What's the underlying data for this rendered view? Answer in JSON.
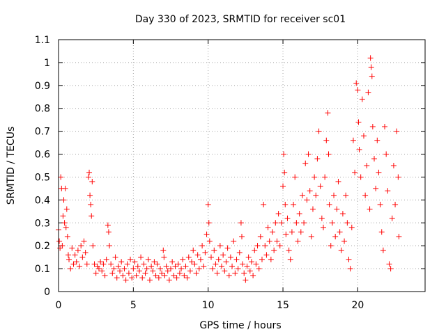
{
  "chart_data": {
    "type": "scatter",
    "title": "Day 330 of 2023, SRMTID for receiver sc01",
    "xlabel": "GPS time / hours",
    "ylabel": "SRMTID / TECUs",
    "xlim": [
      0,
      24.5
    ],
    "ylim": [
      0,
      1.1
    ],
    "xticks": [
      0,
      5,
      10,
      15,
      20
    ],
    "xtick_labels": [
      "0",
      "5",
      "10",
      "15",
      "20"
    ],
    "yticks": [
      0,
      0.1,
      0.2,
      0.3,
      0.4,
      0.5,
      0.6,
      0.7,
      0.8,
      0.9,
      1,
      1.1
    ],
    "ytick_labels": [
      "0",
      "0.1",
      "0.2",
      "0.3",
      "0.4",
      "0.5",
      "0.6",
      "0.7",
      "0.8",
      "0.9",
      "1",
      "1.1"
    ],
    "grid": true,
    "marker": "+",
    "color": "#ff0000",
    "series": [
      {
        "name": "SRMTID",
        "points": [
          [
            0.0,
            0.27
          ],
          [
            0.05,
            0.22
          ],
          [
            0.1,
            0.19
          ],
          [
            0.15,
            0.5
          ],
          [
            0.2,
            0.45
          ],
          [
            0.25,
            0.2
          ],
          [
            0.3,
            0.33
          ],
          [
            0.35,
            0.4
          ],
          [
            0.4,
            0.3
          ],
          [
            0.45,
            0.45
          ],
          [
            0.5,
            0.28
          ],
          [
            0.55,
            0.36
          ],
          [
            0.6,
            0.24
          ],
          [
            0.65,
            0.16
          ],
          [
            0.7,
            0.14
          ],
          [
            0.8,
            0.1
          ],
          [
            0.9,
            0.19
          ],
          [
            1.0,
            0.12
          ],
          [
            1.1,
            0.16
          ],
          [
            1.2,
            0.13
          ],
          [
            1.3,
            0.18
          ],
          [
            1.4,
            0.11
          ],
          [
            1.5,
            0.2
          ],
          [
            1.6,
            0.15
          ],
          [
            1.7,
            0.22
          ],
          [
            1.8,
            0.17
          ],
          [
            1.9,
            0.12
          ],
          [
            2.0,
            0.5
          ],
          [
            2.05,
            0.52
          ],
          [
            2.1,
            0.42
          ],
          [
            2.15,
            0.38
          ],
          [
            2.2,
            0.33
          ],
          [
            2.25,
            0.48
          ],
          [
            2.3,
            0.2
          ],
          [
            2.4,
            0.12
          ],
          [
            2.5,
            0.08
          ],
          [
            2.6,
            0.11
          ],
          [
            2.7,
            0.1
          ],
          [
            2.8,
            0.13
          ],
          [
            2.9,
            0.09
          ],
          [
            3.0,
            0.12
          ],
          [
            3.1,
            0.07
          ],
          [
            3.2,
            0.14
          ],
          [
            3.3,
            0.29
          ],
          [
            3.35,
            0.26
          ],
          [
            3.4,
            0.2
          ],
          [
            3.5,
            0.12
          ],
          [
            3.6,
            0.08
          ],
          [
            3.7,
            0.1
          ],
          [
            3.8,
            0.15
          ],
          [
            3.9,
            0.06
          ],
          [
            4.0,
            0.11
          ],
          [
            4.1,
            0.09
          ],
          [
            4.2,
            0.13
          ],
          [
            4.3,
            0.07
          ],
          [
            4.4,
            0.1
          ],
          [
            4.5,
            0.05
          ],
          [
            4.6,
            0.12
          ],
          [
            4.7,
            0.08
          ],
          [
            4.8,
            0.14
          ],
          [
            4.9,
            0.06
          ],
          [
            5.0,
            0.1
          ],
          [
            5.1,
            0.13
          ],
          [
            5.2,
            0.07
          ],
          [
            5.3,
            0.11
          ],
          [
            5.4,
            0.09
          ],
          [
            5.5,
            0.15
          ],
          [
            5.6,
            0.06
          ],
          [
            5.7,
            0.12
          ],
          [
            5.8,
            0.08
          ],
          [
            5.9,
            0.1
          ],
          [
            6.0,
            0.14
          ],
          [
            6.1,
            0.05
          ],
          [
            6.2,
            0.11
          ],
          [
            6.3,
            0.09
          ],
          [
            6.4,
            0.13
          ],
          [
            6.5,
            0.07
          ],
          [
            6.6,
            0.12
          ],
          [
            6.7,
            0.06
          ],
          [
            6.8,
            0.1
          ],
          [
            6.9,
            0.08
          ],
          [
            7.0,
            0.18
          ],
          [
            7.05,
            0.15
          ],
          [
            7.1,
            0.07
          ],
          [
            7.2,
            0.11
          ],
          [
            7.3,
            0.09
          ],
          [
            7.4,
            0.05
          ],
          [
            7.5,
            0.1
          ],
          [
            7.6,
            0.13
          ],
          [
            7.7,
            0.07
          ],
          [
            7.8,
            0.11
          ],
          [
            7.9,
            0.06
          ],
          [
            8.0,
            0.12
          ],
          [
            8.1,
            0.08
          ],
          [
            8.2,
            0.1
          ],
          [
            8.3,
            0.14
          ],
          [
            8.4,
            0.07
          ],
          [
            8.5,
            0.11
          ],
          [
            8.6,
            0.06
          ],
          [
            8.7,
            0.15
          ],
          [
            8.8,
            0.09
          ],
          [
            8.9,
            0.13
          ],
          [
            9.0,
            0.18
          ],
          [
            9.1,
            0.12
          ],
          [
            9.2,
            0.08
          ],
          [
            9.3,
            0.16
          ],
          [
            9.4,
            0.1
          ],
          [
            9.5,
            0.14
          ],
          [
            9.6,
            0.2
          ],
          [
            9.7,
            0.11
          ],
          [
            9.8,
            0.17
          ],
          [
            9.9,
            0.25
          ],
          [
            10.0,
            0.38
          ],
          [
            10.05,
            0.3
          ],
          [
            10.1,
            0.22
          ],
          [
            10.2,
            0.15
          ],
          [
            10.3,
            0.1
          ],
          [
            10.4,
            0.18
          ],
          [
            10.5,
            0.12
          ],
          [
            10.6,
            0.08
          ],
          [
            10.7,
            0.14
          ],
          [
            10.8,
            0.2
          ],
          [
            10.9,
            0.11
          ],
          [
            11.0,
            0.16
          ],
          [
            11.1,
            0.09
          ],
          [
            11.2,
            0.13
          ],
          [
            11.3,
            0.19
          ],
          [
            11.4,
            0.07
          ],
          [
            11.5,
            0.15
          ],
          [
            11.6,
            0.11
          ],
          [
            11.7,
            0.22
          ],
          [
            11.8,
            0.08
          ],
          [
            11.9,
            0.14
          ],
          [
            12.0,
            0.1
          ],
          [
            12.1,
            0.17
          ],
          [
            12.2,
            0.3
          ],
          [
            12.25,
            0.24
          ],
          [
            12.3,
            0.12
          ],
          [
            12.4,
            0.08
          ],
          [
            12.5,
            0.05
          ],
          [
            12.6,
            0.11
          ],
          [
            12.7,
            0.15
          ],
          [
            12.8,
            0.09
          ],
          [
            12.9,
            0.13
          ],
          [
            13.0,
            0.07
          ],
          [
            13.1,
            0.18
          ],
          [
            13.2,
            0.12
          ],
          [
            13.3,
            0.2
          ],
          [
            13.4,
            0.1
          ],
          [
            13.5,
            0.24
          ],
          [
            13.6,
            0.14
          ],
          [
            13.7,
            0.38
          ],
          [
            13.8,
            0.2
          ],
          [
            13.9,
            0.16
          ],
          [
            14.0,
            0.28
          ],
          [
            14.1,
            0.22
          ],
          [
            14.2,
            0.14
          ],
          [
            14.3,
            0.26
          ],
          [
            14.4,
            0.18
          ],
          [
            14.5,
            0.3
          ],
          [
            14.6,
            0.22
          ],
          [
            14.7,
            0.34
          ],
          [
            14.8,
            0.2
          ],
          [
            14.9,
            0.3
          ],
          [
            15.0,
            0.46
          ],
          [
            15.05,
            0.6
          ],
          [
            15.1,
            0.52
          ],
          [
            15.15,
            0.38
          ],
          [
            15.2,
            0.25
          ],
          [
            15.3,
            0.32
          ],
          [
            15.4,
            0.18
          ],
          [
            15.5,
            0.14
          ],
          [
            15.6,
            0.26
          ],
          [
            15.7,
            0.38
          ],
          [
            15.8,
            0.5
          ],
          [
            15.9,
            0.3
          ],
          [
            16.0,
            0.22
          ],
          [
            16.1,
            0.34
          ],
          [
            16.2,
            0.26
          ],
          [
            16.3,
            0.42
          ],
          [
            16.4,
            0.3
          ],
          [
            16.5,
            0.56
          ],
          [
            16.6,
            0.4
          ],
          [
            16.7,
            0.6
          ],
          [
            16.8,
            0.44
          ],
          [
            16.9,
            0.24
          ],
          [
            17.0,
            0.36
          ],
          [
            17.1,
            0.5
          ],
          [
            17.2,
            0.42
          ],
          [
            17.3,
            0.58
          ],
          [
            17.4,
            0.7
          ],
          [
            17.5,
            0.46
          ],
          [
            17.6,
            0.32
          ],
          [
            17.7,
            0.28
          ],
          [
            17.8,
            0.5
          ],
          [
            17.9,
            0.66
          ],
          [
            18.0,
            0.78
          ],
          [
            18.05,
            0.6
          ],
          [
            18.1,
            0.38
          ],
          [
            18.2,
            0.2
          ],
          [
            18.3,
            0.3
          ],
          [
            18.4,
            0.42
          ],
          [
            18.5,
            0.24
          ],
          [
            18.6,
            0.36
          ],
          [
            18.7,
            0.48
          ],
          [
            18.8,
            0.26
          ],
          [
            18.9,
            0.18
          ],
          [
            19.0,
            0.34
          ],
          [
            19.1,
            0.22
          ],
          [
            19.2,
            0.42
          ],
          [
            19.3,
            0.3
          ],
          [
            19.4,
            0.14
          ],
          [
            19.5,
            0.1
          ],
          [
            19.6,
            0.28
          ],
          [
            19.7,
            0.66
          ],
          [
            19.8,
            0.52
          ],
          [
            19.9,
            0.91
          ],
          [
            20.0,
            0.88
          ],
          [
            20.05,
            0.74
          ],
          [
            20.1,
            0.62
          ],
          [
            20.2,
            0.5
          ],
          [
            20.3,
            0.84
          ],
          [
            20.4,
            0.68
          ],
          [
            20.5,
            0.42
          ],
          [
            20.6,
            0.55
          ],
          [
            20.7,
            0.87
          ],
          [
            20.8,
            0.36
          ],
          [
            20.85,
            1.02
          ],
          [
            20.9,
            0.98
          ],
          [
            20.95,
            0.94
          ],
          [
            21.0,
            0.72
          ],
          [
            21.1,
            0.58
          ],
          [
            21.2,
            0.45
          ],
          [
            21.3,
            0.66
          ],
          [
            21.4,
            0.52
          ],
          [
            21.5,
            0.38
          ],
          [
            21.6,
            0.26
          ],
          [
            21.7,
            0.18
          ],
          [
            21.8,
            0.72
          ],
          [
            21.9,
            0.6
          ],
          [
            22.0,
            0.44
          ],
          [
            22.1,
            0.12
          ],
          [
            22.2,
            0.1
          ],
          [
            22.3,
            0.32
          ],
          [
            22.4,
            0.55
          ],
          [
            22.5,
            0.38
          ],
          [
            22.6,
            0.7
          ],
          [
            22.7,
            0.5
          ],
          [
            22.75,
            0.24
          ]
        ]
      }
    ]
  }
}
